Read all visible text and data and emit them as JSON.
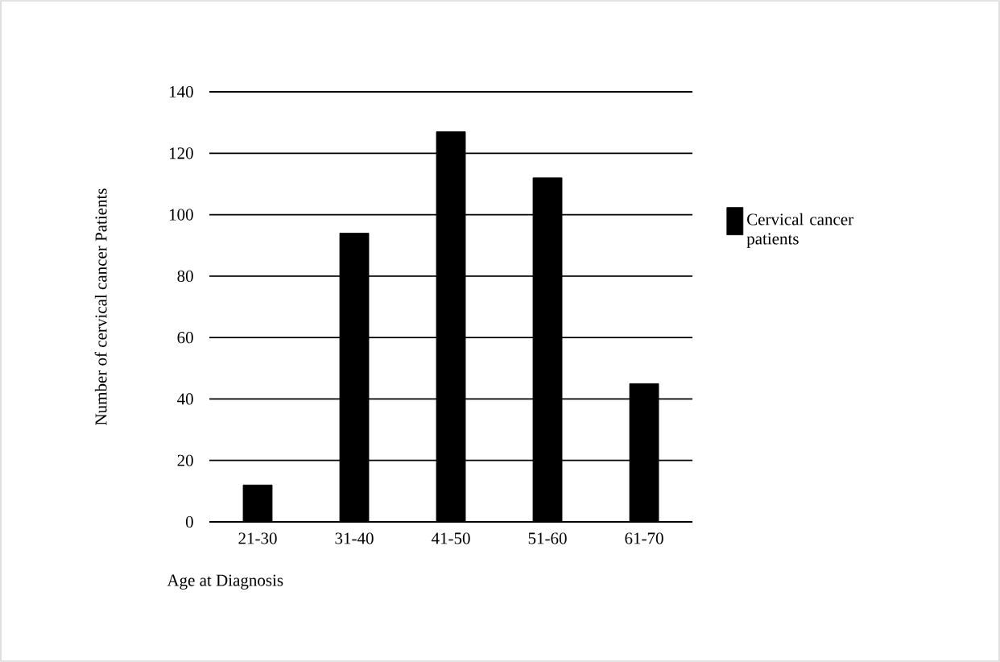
{
  "chart_data": {
    "type": "bar",
    "xlabel": "Age at Diagnosis",
    "ylabel": "Number of  cervical cancer Patients",
    "categories": [
      "21-30",
      "31-40",
      "41-50",
      "51-60",
      "61-70"
    ],
    "series": [
      {
        "name": "Cervical cancer patients",
        "color": "#000000",
        "values": [
          12,
          94,
          127,
          112,
          45
        ]
      }
    ],
    "ylim": [
      0,
      140
    ],
    "yticks": [
      0,
      20,
      40,
      60,
      80,
      100,
      120,
      140
    ],
    "grid": "y",
    "legend": "right"
  }
}
